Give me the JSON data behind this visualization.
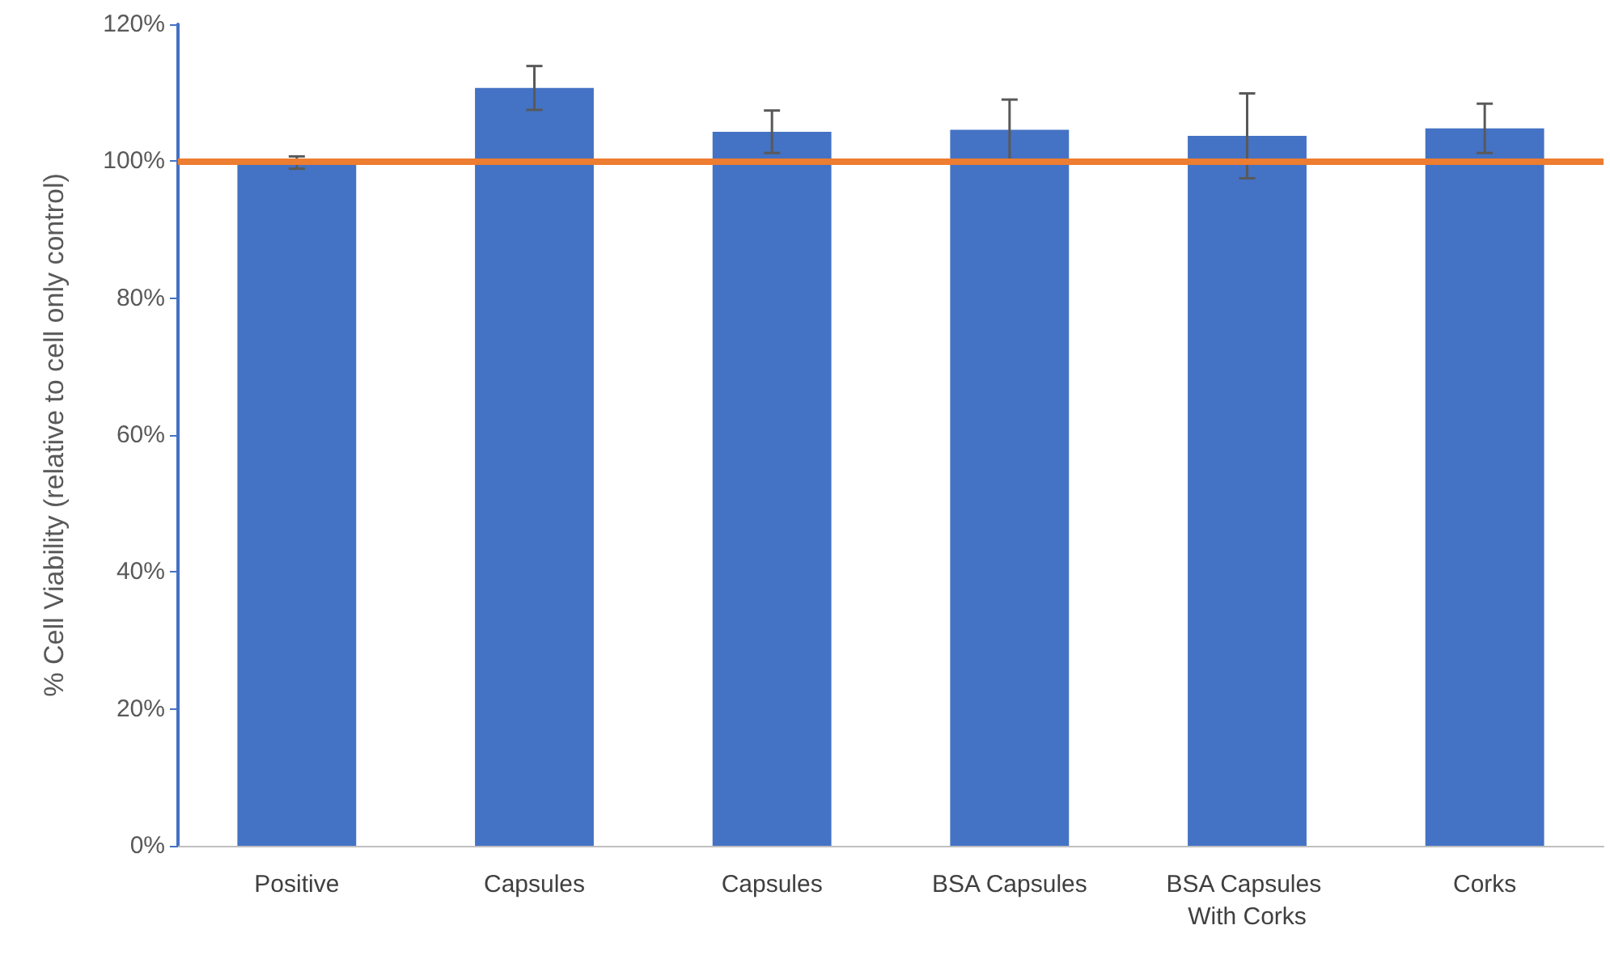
{
  "chart_data": {
    "type": "bar",
    "ylabel": "% Cell Viability (relative to cell only control)",
    "categories": [
      "Positive",
      "Capsules",
      "Capsules",
      "BSA Capsules",
      "BSA Capsules With Corks",
      "Corks"
    ],
    "values": [
      99.8,
      110.7,
      104.3,
      104.6,
      103.7,
      104.8
    ],
    "errors": [
      0.9,
      3.2,
      3.1,
      4.4,
      6.2,
      3.6
    ],
    "color": "#4472c4",
    "ylim": [
      0,
      120
    ],
    "yticks": [
      {
        "value": 0,
        "label": "0%"
      },
      {
        "value": 20,
        "label": "20%"
      },
      {
        "value": 40,
        "label": "40%"
      },
      {
        "value": 60,
        "label": "60%"
      },
      {
        "value": 80,
        "label": "80%"
      },
      {
        "value": 100,
        "label": "100%"
      },
      {
        "value": 120,
        "label": "120%"
      }
    ],
    "ref_lines": [
      {
        "axis": "y",
        "value": 100,
        "label": null,
        "color": "#ed7d31"
      }
    ],
    "grid": false
  }
}
